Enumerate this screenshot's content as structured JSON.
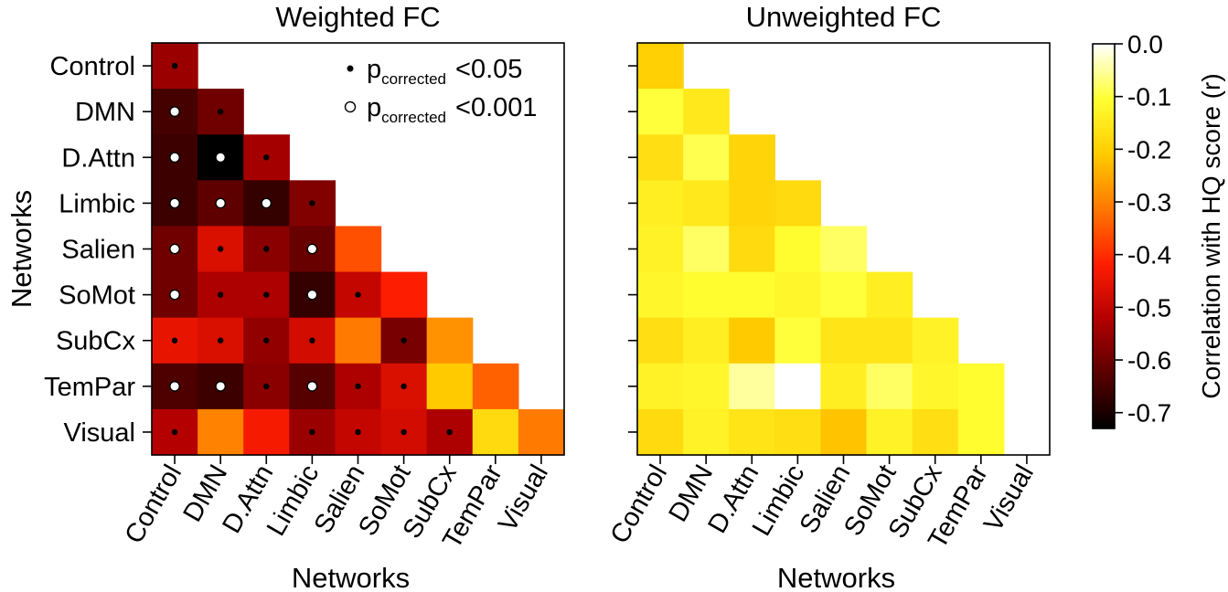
{
  "chart_data": [
    {
      "type": "heatmap",
      "title": "Weighted FC",
      "xlabel": "Networks",
      "ylabel": "Networks",
      "categories": [
        "Control",
        "DMN",
        "D.Attn",
        "Limbic",
        "Salien",
        "SoMot",
        "SubCx",
        "TemPar",
        "Visual"
      ],
      "values": [
        [
          -0.55
        ],
        [
          -0.65,
          -0.6
        ],
        [
          -0.66,
          -0.73,
          -0.54
        ],
        [
          -0.66,
          -0.62,
          -0.67,
          -0.58
        ],
        [
          -0.6,
          -0.47,
          -0.57,
          -0.61,
          -0.36
        ],
        [
          -0.6,
          -0.53,
          -0.53,
          -0.67,
          -0.5,
          -0.42
        ],
        [
          -0.45,
          -0.47,
          -0.56,
          -0.48,
          -0.31,
          -0.59,
          -0.28
        ],
        [
          -0.64,
          -0.66,
          -0.57,
          -0.63,
          -0.53,
          -0.47,
          -0.21,
          -0.34
        ],
        [
          -0.52,
          -0.3,
          -0.43,
          -0.55,
          -0.5,
          -0.48,
          -0.53,
          -0.18,
          -0.31
        ]
      ],
      "significance": [
        [
          "p05"
        ],
        [
          "p001",
          "p05"
        ],
        [
          "p001",
          "p001",
          "p05"
        ],
        [
          "p001",
          "p001",
          "p001",
          "p05"
        ],
        [
          "p001",
          "p05",
          "p05",
          "p001",
          ""
        ],
        [
          "p001",
          "p05",
          "p05",
          "p001",
          "p05",
          ""
        ],
        [
          "p05",
          "p05",
          "p05",
          "p05",
          "",
          "p05",
          ""
        ],
        [
          "p001",
          "p001",
          "p05",
          "p001",
          "p05",
          "p05",
          "",
          ""
        ],
        [
          "p05",
          "",
          "",
          "p05",
          "p05",
          "p05",
          "p05",
          "",
          ""
        ]
      ],
      "legend": {
        "position": "top-right",
        "entries": [
          {
            "marker": "filled-dot",
            "label_p": "p",
            "label_sub": "corrected",
            "label_thr": "<0.05"
          },
          {
            "marker": "open-circle",
            "label_p": "p",
            "label_sub": "corrected",
            "label_thr": "<0.001"
          }
        ]
      }
    },
    {
      "type": "heatmap",
      "title": "Unweighted FC",
      "xlabel": "Networks",
      "ylabel": "",
      "categories": [
        "Control",
        "DMN",
        "D.Attn",
        "Limbic",
        "Salien",
        "SoMot",
        "SubCx",
        "TemPar",
        "Visual"
      ],
      "values": [
        [
          -0.2
        ],
        [
          -0.1,
          -0.15
        ],
        [
          -0.17,
          -0.09,
          -0.19
        ],
        [
          -0.14,
          -0.15,
          -0.19,
          -0.18
        ],
        [
          -0.13,
          -0.08,
          -0.18,
          -0.11,
          -0.08
        ],
        [
          -0.12,
          -0.11,
          -0.11,
          -0.12,
          -0.1,
          -0.14
        ],
        [
          -0.17,
          -0.14,
          -0.21,
          -0.1,
          -0.16,
          -0.16,
          -0.13
        ],
        [
          -0.13,
          -0.12,
          -0.05,
          0.0,
          -0.14,
          -0.08,
          -0.12,
          -0.11
        ],
        [
          -0.18,
          -0.13,
          -0.16,
          -0.17,
          -0.22,
          -0.13,
          -0.17,
          -0.11,
          null
        ]
      ]
    }
  ],
  "colorbar": {
    "label": "Correlation with HQ score (r)",
    "range": [
      -0.73,
      0.0
    ],
    "ticks": [
      0.0,
      -0.1,
      -0.2,
      -0.3,
      -0.4,
      -0.5,
      -0.6,
      -0.7
    ],
    "tick_labels": [
      "0.0",
      "-0.1",
      "-0.2",
      "-0.3",
      "-0.4",
      "-0.5",
      "-0.6",
      "-0.7"
    ]
  },
  "colors": {
    "cmap": [
      "#000000",
      "#5a0000",
      "#b40000",
      "#ff1e00",
      "#ff7800",
      "#ffcc00",
      "#ffff33",
      "#ffffff"
    ],
    "frame": "#000000",
    "marker_fill_dot": "#000000",
    "marker_fill_circle": "#ffffff"
  }
}
